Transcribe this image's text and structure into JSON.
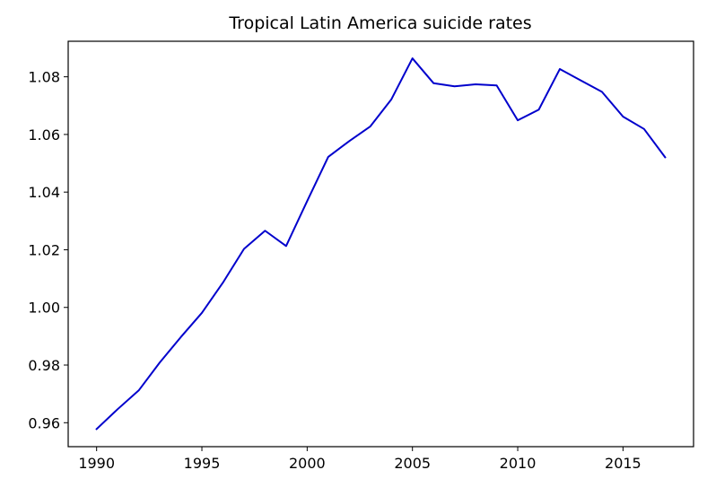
{
  "chart_data": {
    "type": "line",
    "title": "Tropical Latin America suicide rates",
    "xlabel": "",
    "ylabel": "",
    "xlim": [
      1988.65,
      2018.35
    ],
    "ylim": [
      0.95169,
      1.09233
    ],
    "xticks": [
      1990,
      1995,
      2000,
      2005,
      2010,
      2015
    ],
    "yticks": [
      0.96,
      0.98,
      1.0,
      1.02,
      1.04,
      1.06,
      1.08
    ],
    "xtick_labels": [
      "1990",
      "1995",
      "2000",
      "2005",
      "2010",
      "2015"
    ],
    "ytick_labels": [
      "0.96",
      "0.98",
      "1.00",
      "1.02",
      "1.04",
      "1.06",
      "1.08"
    ],
    "grid": false,
    "legend": "none",
    "series": [
      {
        "color": "#0000cc",
        "x": [
          1990,
          1991,
          1992,
          1993,
          1994,
          1995,
          1996,
          1997,
          1998,
          1999,
          2000,
          2001,
          2002,
          2003,
          2004,
          2005,
          2006,
          2007,
          2008,
          2009,
          2010,
          2011,
          2012,
          2013,
          2014,
          2015,
          2016,
          2017
        ],
        "y": [
          0.9578,
          0.9647,
          0.9712,
          0.9809,
          0.9897,
          0.9981,
          1.0086,
          1.0203,
          1.0266,
          1.0213,
          1.0369,
          1.0522,
          1.0577,
          1.0628,
          1.0722,
          1.0864,
          1.0778,
          1.0767,
          1.0774,
          1.077,
          1.0649,
          1.0686,
          1.0827,
          1.0787,
          1.0748,
          1.0662,
          1.0619,
          1.0521
        ]
      }
    ]
  }
}
